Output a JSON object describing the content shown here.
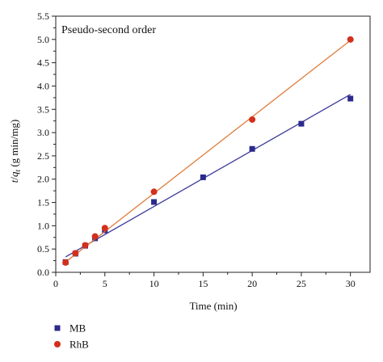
{
  "chart_data": {
    "type": "scatter",
    "annotation": "Pseudo-second order",
    "xlabel": "Time (min)",
    "ylabel_parts": [
      "t",
      "/",
      "q",
      "t",
      " (g min/mg)"
    ],
    "xlim": [
      0,
      32
    ],
    "ylim": [
      0,
      5.5
    ],
    "xticks": [
      0,
      5,
      10,
      15,
      20,
      25,
      30
    ],
    "yticks": [
      0.0,
      0.5,
      1.0,
      1.5,
      2.0,
      2.5,
      3.0,
      3.5,
      4.0,
      4.5,
      5.0,
      5.5
    ],
    "legend_position": "bottom-left, below plot",
    "series": [
      {
        "name": "MB",
        "marker": "square",
        "color": "#2b2a8c",
        "line_color": "#3b3a9a",
        "x": [
          1,
          2,
          3,
          4,
          5,
          10,
          15,
          20,
          25,
          30
        ],
        "y": [
          0.22,
          0.4,
          0.57,
          0.73,
          0.9,
          1.51,
          2.04,
          2.65,
          3.19,
          3.73
        ],
        "fit": [
          [
            1,
            0.33
          ],
          [
            30,
            3.82
          ]
        ]
      },
      {
        "name": "RhB",
        "marker": "circle",
        "color": "#d2301c",
        "line_color": "#e07b39",
        "x": [
          1,
          2,
          3,
          4,
          5,
          10,
          20,
          30
        ],
        "y": [
          0.21,
          0.41,
          0.58,
          0.77,
          0.95,
          1.73,
          3.28,
          5.0
        ],
        "fit": [
          [
            1,
            0.22
          ],
          [
            30,
            4.98
          ]
        ]
      }
    ]
  }
}
